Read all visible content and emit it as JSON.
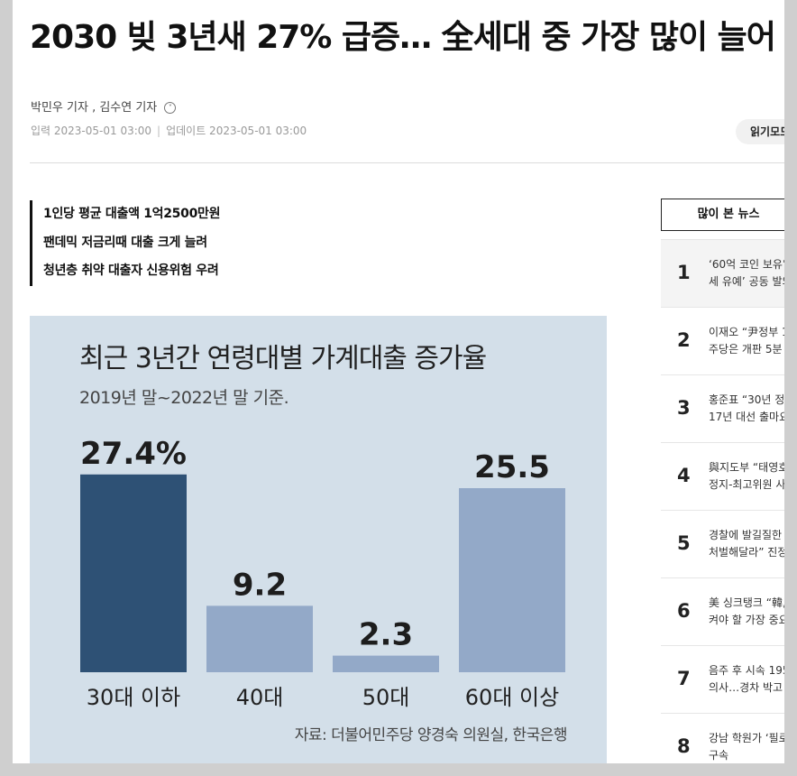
{
  "article": {
    "headline": "2030 빚 3년새 27% 급증… 全세대 중 가장 많이 늘어",
    "reporters": "박민우 기자 , 김수연 기자",
    "input_label": "입력 2023-05-01 03:00",
    "update_label": "업데이트 2023-05-01 03:00",
    "read_mode": "읽기모드",
    "summary": [
      "1인당 평균 대출액 1억2500만원",
      "팬데믹 저금리때 대출 크게 늘려",
      "청년층 취약 대출자 신용위험 우려"
    ]
  },
  "infographic": {
    "title": "최근 3년간 연령대별 가계대출 증가율",
    "subtitle": "2019년 말~2022년 말 기준.",
    "source": "자료: 더불어민주당 양경숙 의원실, 한국은행"
  },
  "chart_data": {
    "type": "bar",
    "title": "최근 3년간 연령대별 가계대출 증가율",
    "subtitle": "2019년 말~2022년 말 기준.",
    "categories": [
      "30대 이하",
      "40대",
      "50대",
      "60대 이상"
    ],
    "values": [
      27.4,
      9.2,
      2.3,
      25.5
    ],
    "value_labels": [
      "27.4%",
      "9.2",
      "2.3",
      "25.5"
    ],
    "unit": "%",
    "ylim": [
      0,
      30
    ],
    "grid": false,
    "colors": {
      "highlight": "#2e5175",
      "default": "#93a9c8",
      "background": "#d3dfe9"
    }
  },
  "popular": {
    "header": "많이 본 뉴스",
    "items": [
      {
        "num": "1",
        "line1": "‘60억 코인 보유’",
        "line2": "세 유예’ 공동 발의"
      },
      {
        "num": "2",
        "line1": "이재오 “尹정부 1",
        "line2": "주당은 개판 5분"
      },
      {
        "num": "3",
        "line1": "홍준표 “30년 정",
        "line2": "17년 대선 출마요"
      },
      {
        "num": "4",
        "line1": "與지도부 “태영호",
        "line2": "정지-최고위원 사"
      },
      {
        "num": "5",
        "line1": "경찰에 발길질한",
        "line2": "처벌해달라” 진정"
      },
      {
        "num": "6",
        "line1": "美 싱크탱크 “韓,",
        "line2": "켜야 할 가장 중요"
      },
      {
        "num": "7",
        "line1": "음주 후 시속 195",
        "line2": "의사…경차 박고"
      },
      {
        "num": "8",
        "line1": "강남 학원가 ‘필로",
        "line2": "구속"
      }
    ]
  }
}
